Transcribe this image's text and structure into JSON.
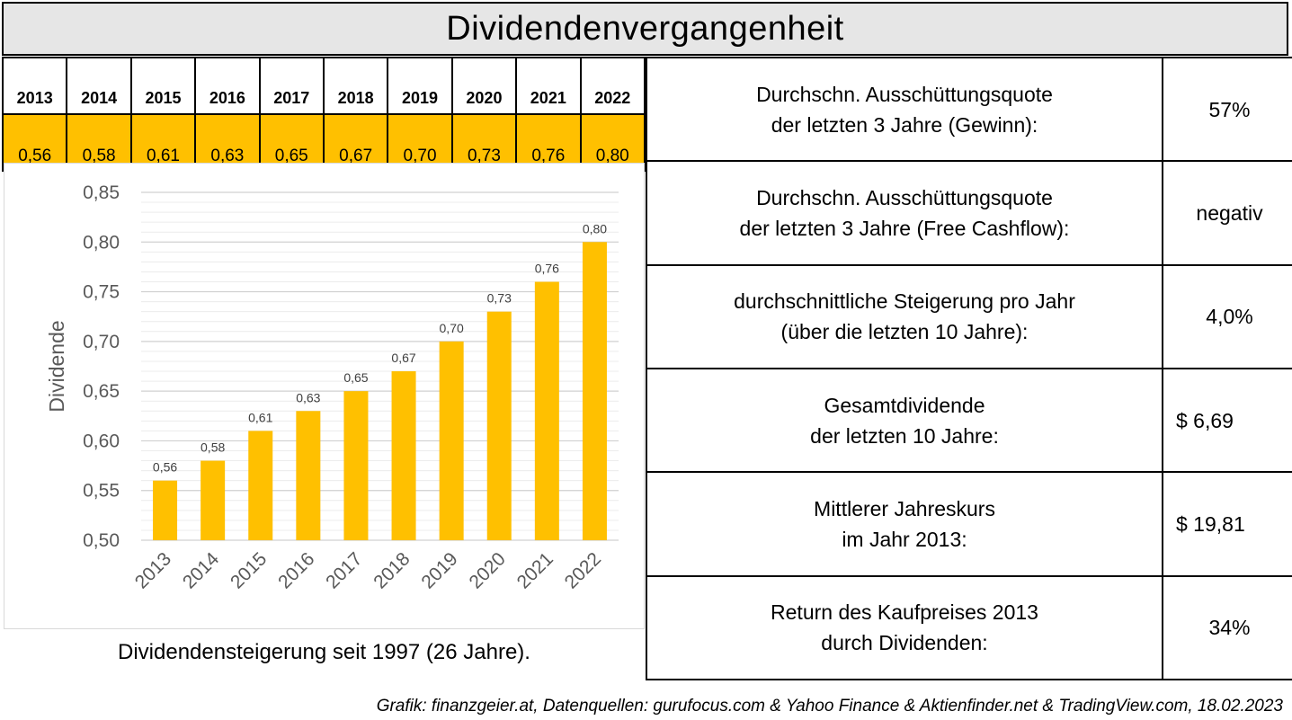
{
  "title": "Dividendenvergangenheit",
  "year_table": {
    "years": [
      "2013",
      "2014",
      "2015",
      "2016",
      "2017",
      "2018",
      "2019",
      "2020",
      "2021",
      "2022"
    ],
    "values": [
      "0,56",
      "0,58",
      "0,61",
      "0,63",
      "0,65",
      "0,67",
      "0,70",
      "0,73",
      "0,76",
      "0,80"
    ],
    "fill_color": "#ffc000"
  },
  "chart_data": {
    "type": "bar",
    "categories": [
      "2013",
      "2014",
      "2015",
      "2016",
      "2017",
      "2018",
      "2019",
      "2020",
      "2021",
      "2022"
    ],
    "values": [
      0.56,
      0.58,
      0.61,
      0.63,
      0.65,
      0.67,
      0.7,
      0.73,
      0.76,
      0.8
    ],
    "data_labels": [
      "0,56",
      "0,58",
      "0,61",
      "0,63",
      "0,65",
      "0,67",
      "0,70",
      "0,73",
      "0,76",
      "0,80"
    ],
    "ylabel": "Dividende",
    "ylim": [
      0.5,
      0.85
    ],
    "yticks": [
      0.5,
      0.55,
      0.6,
      0.65,
      0.7,
      0.75,
      0.8,
      0.85
    ],
    "ytick_labels": [
      "0,50",
      "0,55",
      "0,60",
      "0,65",
      "0,70",
      "0,75",
      "0,80",
      "0,85"
    ],
    "grid": true,
    "bar_color": "#ffc000"
  },
  "caption": "Dividendensteigerung seit 1997 (26 Jahre).",
  "kpis": [
    {
      "label1": "Durchschn. Ausschüttungsquote",
      "label2": "der letzten 3 Jahre (Gewinn):",
      "value": "57%"
    },
    {
      "label1": "Durchschn. Ausschüttungsquote",
      "label2": "der letzten 3 Jahre (Free Cashflow):",
      "value": "negativ"
    },
    {
      "label1": "durchschnittliche Steigerung pro Jahr",
      "label2": "(über die letzten 10 Jahre):",
      "value": "4,0%"
    },
    {
      "label1": "Gesamtdividende",
      "label2": "der letzten 10 Jahre:",
      "value": "$ 6,69"
    },
    {
      "label1": "Mittlerer Jahreskurs",
      "label2": "im Jahr 2013:",
      "value": "$ 19,81"
    },
    {
      "label1": "Return des Kaufpreises 2013",
      "label2": "durch Dividenden:",
      "value": "34%"
    }
  ],
  "footer": "Grafik: finanzgeier.at, Datenquellen: gurufocus.com & Yahoo Finance & Aktienfinder.net & TradingView.com, 18.02.2023"
}
